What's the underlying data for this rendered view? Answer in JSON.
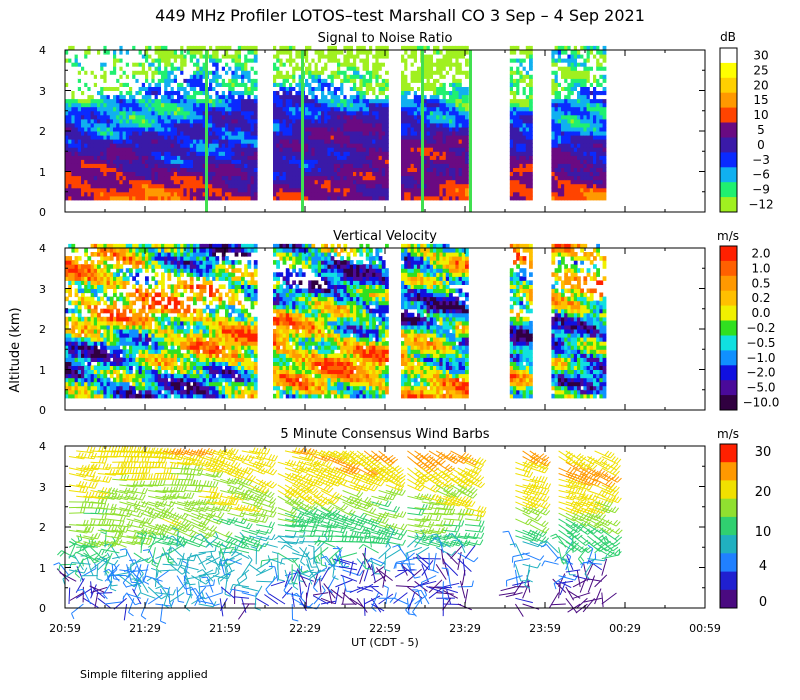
{
  "title": "449 MHz Profiler LOTOS–test Marshall CO  3 Sep –  4 Sep 2021",
  "ylabel": "Altitude (km)",
  "xlabel": "UT  (CDT - 5)",
  "footnote": "Simple filtering applied",
  "x_ticks": [
    "20:59",
    "21:29",
    "21:59",
    "22:29",
    "22:59",
    "23:29",
    "23:59",
    "00:29",
    "00:59"
  ],
  "data_segments": [
    [
      0.0,
      2.4
    ],
    [
      2.6,
      4.05
    ],
    [
      4.2,
      5.05
    ],
    [
      5.55,
      5.85
    ],
    [
      6.1,
      6.75
    ]
  ],
  "chart_data": [
    {
      "type": "heatmap",
      "title": "Signal to Noise Ratio",
      "unit": "dB",
      "xlim": [
        "20:59",
        "00:59"
      ],
      "ylim": [
        0,
        4
      ],
      "y_ticks": [
        "0",
        "1",
        "2",
        "3",
        "4"
      ],
      "colorbar_labels": [
        "30",
        "25",
        "20",
        "15",
        "10",
        "5",
        "0",
        "−3",
        "−6",
        "−9",
        "−12"
      ],
      "colors": [
        "#ffffff",
        "#ffff00",
        "#ffd000",
        "#ff9900",
        "#ff4400",
        "#6a0a82",
        "#3a1aa8",
        "#0a2aff",
        "#10b0f0",
        "#20f070",
        "#a0f020"
      ],
      "profile_by_altitude_km": [
        [
          0.4,
          10
        ],
        [
          0.8,
          7
        ],
        [
          1.2,
          4
        ],
        [
          1.6,
          3
        ],
        [
          2.0,
          1
        ],
        [
          2.4,
          -2
        ],
        [
          2.8,
          -5
        ],
        [
          3.2,
          -8
        ],
        [
          3.6,
          -10
        ],
        [
          4.0,
          -12
        ]
      ]
    },
    {
      "type": "heatmap",
      "title": "Vertical Velocity",
      "unit": "m/s",
      "xlim": [
        "20:59",
        "00:59"
      ],
      "ylim": [
        0,
        4
      ],
      "y_ticks": [
        "0",
        "1",
        "2",
        "3",
        "4"
      ],
      "colorbar_labels": [
        "2.0",
        "1.0",
        "0.5",
        "0.2",
        "0.0",
        "−0.2",
        "−0.5",
        "−1.0",
        "−2.0",
        "−5.0",
        "−10.0"
      ],
      "colors": [
        "#ff2000",
        "#ff6000",
        "#ff9900",
        "#ffc000",
        "#f0f000",
        "#30e020",
        "#10e0e0",
        "#1090ff",
        "#1010e0",
        "#4a0a9a",
        "#300040"
      ],
      "value_range_m_s": [
        -10.0,
        2.0
      ]
    },
    {
      "type": "scatter",
      "title": "5 Minute Consensus Wind Barbs",
      "unit": "m/s",
      "xlim": [
        "20:59",
        "00:59"
      ],
      "ylim": [
        0,
        4
      ],
      "y_ticks": [
        "0",
        "1",
        "2",
        "3",
        "4"
      ],
      "colorbar_labels": [
        "30",
        "20",
        "10",
        "4",
        "0"
      ],
      "colors": [
        "#ff2000",
        "#ff9900",
        "#f0e000",
        "#90e030",
        "#30d070",
        "#20b0c0",
        "#2080ff",
        "#2020d0",
        "#4a0a80"
      ],
      "speed_by_altitude_km": [
        [
          0.3,
          2
        ],
        [
          0.7,
          3
        ],
        [
          1.1,
          5
        ],
        [
          1.5,
          9
        ],
        [
          1.9,
          12
        ],
        [
          2.3,
          14
        ],
        [
          2.7,
          16
        ],
        [
          3.1,
          18
        ],
        [
          3.5,
          20
        ],
        [
          3.9,
          22
        ]
      ]
    }
  ]
}
